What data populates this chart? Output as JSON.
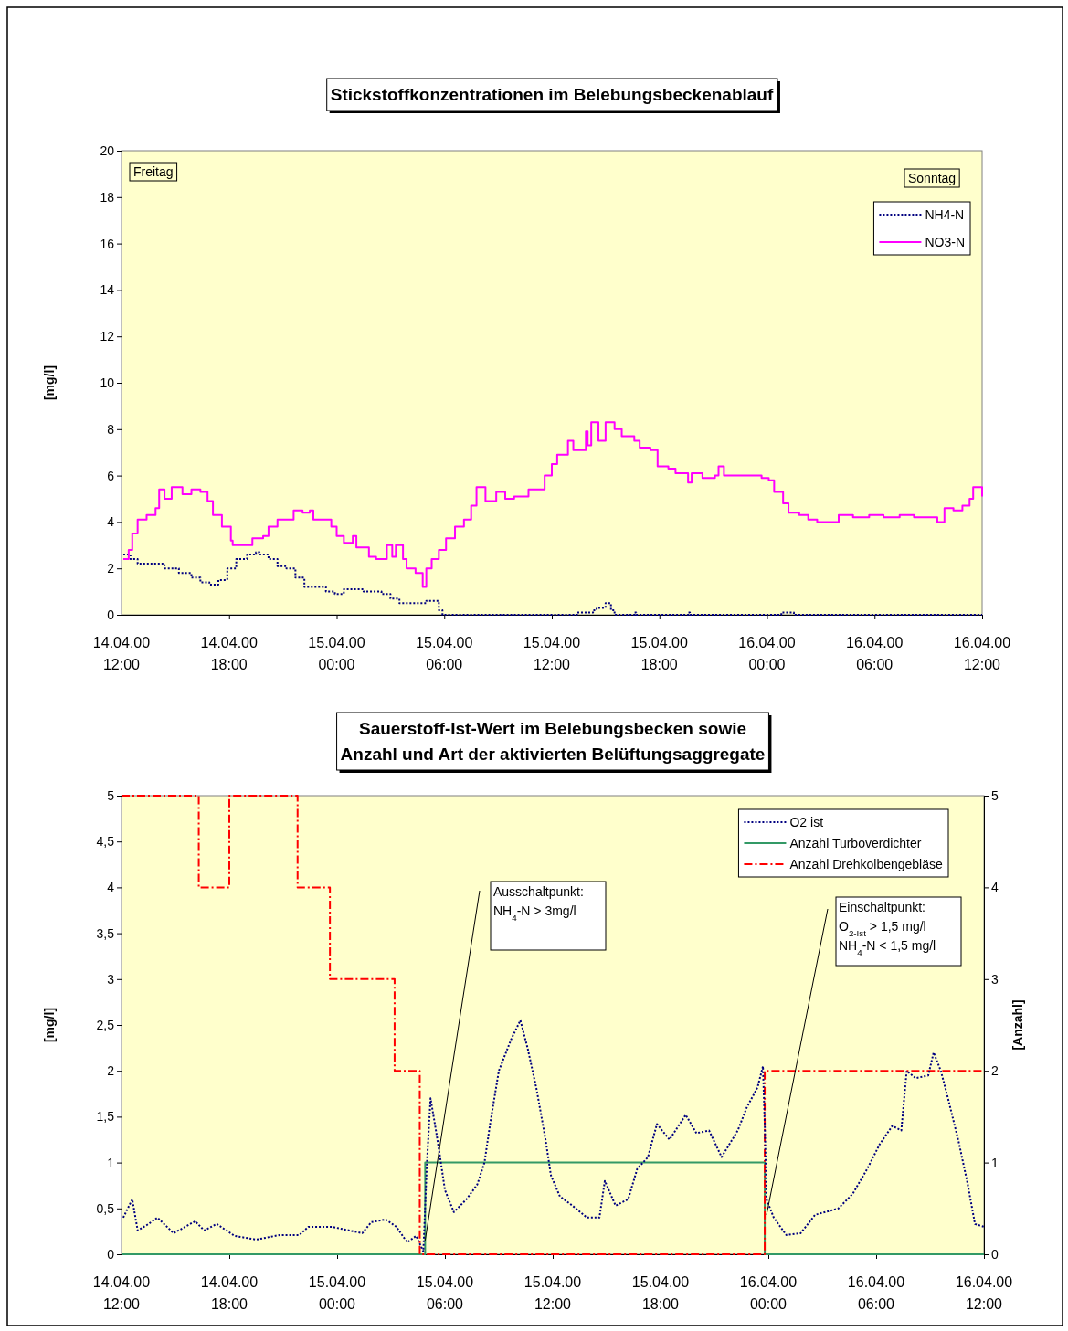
{
  "chart_data": [
    {
      "type": "line",
      "title": "Stickstoffkonzentrationen im Belebungsbeckenablauf",
      "ylabel": "[mg/l]",
      "xlim": [
        "2000-04-14T12:00",
        "2000-04-16T12:00"
      ],
      "xticks": [
        {
          "value": "2000-04-14T12:00",
          "label": "14.04.00\n12:00"
        },
        {
          "value": "2000-04-14T18:00",
          "label": "14.04.00\n18:00"
        },
        {
          "value": "2000-04-15T00:00",
          "label": "15.04.00\n00:00"
        },
        {
          "value": "2000-04-15T06:00",
          "label": "15.04.00\n06:00"
        },
        {
          "value": "2000-04-15T12:00",
          "label": "15.04.00\n12:00"
        },
        {
          "value": "2000-04-15T18:00",
          "label": "15.04.00\n18:00"
        },
        {
          "value": "2000-04-16T00:00",
          "label": "16.04.00\n00:00"
        },
        {
          "value": "2000-04-16T06:00",
          "label": "16.04.00\n06:00"
        },
        {
          "value": "2000-04-16T12:00",
          "label": "16.04.00\n12:00"
        }
      ],
      "ylim": [
        0,
        20
      ],
      "yticks": [
        0,
        2,
        4,
        6,
        8,
        10,
        12,
        14,
        16,
        18,
        20
      ],
      "legend": "top right",
      "marker": "none",
      "annotations": [
        "Freitag",
        "Sonntag"
      ],
      "series": [
        {
          "name": "NH4-N",
          "type": "step",
          "color": "#000080",
          "line_style": "dotted",
          "x": [
            "2000-04-14T12:06",
            "2000-04-14T12:30",
            "2000-04-14T12:54",
            "2000-04-14T14:24",
            "2000-04-14T15:12",
            "2000-04-14T15:54",
            "2000-04-14T16:24",
            "2000-04-14T16:54",
            "2000-04-14T17:24",
            "2000-04-14T17:54",
            "2000-04-14T18:24",
            "2000-04-14T19:00",
            "2000-04-14T19:30",
            "2000-04-14T19:42",
            "2000-04-14T20:12",
            "2000-04-14T20:42",
            "2000-04-14T21:12",
            "2000-04-14T21:42",
            "2000-04-14T22:12",
            "2000-04-14T22:42",
            "2000-04-14T23:24",
            "2000-04-14T23:54",
            "2000-04-15T00:24",
            "2000-04-15T01:30",
            "2000-04-15T02:30",
            "2000-04-15T03:00",
            "2000-04-15T03:30",
            "2000-04-15T04:12",
            "2000-04-15T04:48",
            "2000-04-15T05:00",
            "2000-04-15T05:36",
            "2000-04-15T05:42",
            "2000-04-15T05:54",
            "2000-04-15T13:18",
            "2000-04-15T13:24",
            "2000-04-15T14:18",
            "2000-04-15T14:30",
            "2000-04-15T15:00",
            "2000-04-15T15:18",
            "2000-04-15T15:30",
            "2000-04-15T16:36",
            "2000-04-15T16:42",
            "2000-04-15T19:36",
            "2000-04-15T19:42",
            "2000-04-16T00:48",
            "2000-04-16T01:30",
            "2000-04-16T12:00"
          ],
          "values": [
            2.6,
            2.4,
            2.2,
            2.0,
            1.8,
            1.6,
            1.4,
            1.3,
            1.5,
            2.0,
            2.4,
            2.6,
            2.7,
            2.6,
            2.4,
            2.1,
            2.0,
            1.6,
            1.2,
            1.2,
            1.0,
            0.9,
            1.1,
            1.0,
            0.9,
            0.7,
            0.5,
            0.5,
            0.5,
            0.6,
            0.6,
            0.2,
            0,
            0,
            0.1,
            0.2,
            0.3,
            0.5,
            0.2,
            0,
            0.1,
            0,
            0.1,
            0,
            0.1,
            0,
            0
          ]
        },
        {
          "name": "NO3-N",
          "type": "step",
          "color": "#ff00ff",
          "line_style": "solid",
          "x": [
            "2000-04-14T12:06",
            "2000-04-14T12:24",
            "2000-04-14T12:36",
            "2000-04-14T12:54",
            "2000-04-14T13:24",
            "2000-04-14T13:54",
            "2000-04-14T14:06",
            "2000-04-14T14:24",
            "2000-04-14T14:48",
            "2000-04-14T15:24",
            "2000-04-14T15:54",
            "2000-04-14T16:24",
            "2000-04-14T16:48",
            "2000-04-14T17:06",
            "2000-04-14T17:36",
            "2000-04-14T18:06",
            "2000-04-14T18:12",
            "2000-04-14T18:48",
            "2000-04-14T19:18",
            "2000-04-14T19:54",
            "2000-04-14T20:12",
            "2000-04-14T20:42",
            "2000-04-14T21:06",
            "2000-04-14T21:36",
            "2000-04-14T22:06",
            "2000-04-14T22:30",
            "2000-04-14T22:42",
            "2000-04-14T23:24",
            "2000-04-14T23:42",
            "2000-04-15T00:00",
            "2000-04-15T00:24",
            "2000-04-15T00:54",
            "2000-04-15T01:06",
            "2000-04-15T01:48",
            "2000-04-15T02:12",
            "2000-04-15T02:48",
            "2000-04-15T03:06",
            "2000-04-15T03:18",
            "2000-04-15T03:42",
            "2000-04-15T03:54",
            "2000-04-15T04:24",
            "2000-04-15T04:48",
            "2000-04-15T04:54",
            "2000-04-15T05:00",
            "2000-04-15T05:18",
            "2000-04-15T05:42",
            "2000-04-15T06:06",
            "2000-04-15T06:36",
            "2000-04-15T07:06",
            "2000-04-15T07:30",
            "2000-04-15T07:48",
            "2000-04-15T08:18",
            "2000-04-15T08:54",
            "2000-04-15T09:24",
            "2000-04-15T09:54",
            "2000-04-15T10:42",
            "2000-04-15T11:18",
            "2000-04-15T11:36",
            "2000-04-15T12:00",
            "2000-04-15T12:18",
            "2000-04-15T12:54",
            "2000-04-15T13:12",
            "2000-04-15T13:54",
            "2000-04-15T14:00",
            "2000-04-15T14:12",
            "2000-04-15T14:36",
            "2000-04-15T15:00",
            "2000-04-15T15:30",
            "2000-04-15T15:54",
            "2000-04-15T16:36",
            "2000-04-15T16:54",
            "2000-04-15T17:30",
            "2000-04-15T17:54",
            "2000-04-15T18:30",
            "2000-04-15T18:54",
            "2000-04-15T19:36",
            "2000-04-15T19:48",
            "2000-04-15T20:24",
            "2000-04-15T21:06",
            "2000-04-15T21:18",
            "2000-04-15T21:36",
            "2000-04-15T22:42",
            "2000-04-15T23:42",
            "2000-04-16T00:06",
            "2000-04-16T00:24",
            "2000-04-16T00:54",
            "2000-04-16T01:12",
            "2000-04-16T01:48",
            "2000-04-16T02:18",
            "2000-04-16T02:48",
            "2000-04-16T03:30",
            "2000-04-16T04:00",
            "2000-04-16T04:48",
            "2000-04-16T05:42",
            "2000-04-16T06:30",
            "2000-04-16T07:24",
            "2000-04-16T08:12",
            "2000-04-16T09:06",
            "2000-04-16T09:30",
            "2000-04-16T09:54",
            "2000-04-16T10:24",
            "2000-04-16T10:54",
            "2000-04-16T11:18",
            "2000-04-16T11:30",
            "2000-04-16T12:00"
          ],
          "values": [
            2.4,
            2.8,
            3.5,
            4.1,
            4.3,
            4.6,
            5.4,
            5.0,
            5.5,
            5.2,
            5.4,
            5.3,
            4.9,
            4.3,
            3.8,
            3.2,
            3.0,
            3.0,
            3.3,
            3.4,
            3.8,
            4.1,
            4.1,
            4.5,
            4.4,
            4.5,
            4.1,
            4.1,
            3.8,
            3.4,
            3.1,
            3.4,
            2.9,
            2.5,
            2.4,
            3.0,
            2.5,
            3.0,
            2.4,
            2.0,
            1.8,
            1.2,
            1.2,
            2.0,
            2.4,
            2.8,
            3.3,
            3.8,
            4.1,
            4.7,
            5.5,
            4.9,
            5.3,
            5.0,
            5.1,
            5.4,
            5.4,
            6.0,
            6.5,
            6.9,
            7.5,
            7.1,
            7.9,
            7.3,
            8.3,
            7.5,
            8.3,
            8.0,
            7.7,
            7.5,
            7.2,
            7.1,
            6.4,
            6.3,
            6.1,
            5.7,
            6.1,
            5.9,
            6.0,
            6.4,
            6.0,
            6.0,
            5.9,
            5.8,
            5.3,
            4.8,
            4.4,
            4.3,
            4.1,
            4.0,
            4.0,
            4.3,
            4.2,
            4.3,
            4.2,
            4.3,
            4.2,
            4.2,
            4.0,
            4.6,
            4.5,
            4.7,
            5.0,
            5.5,
            5.1
          ]
        }
      ]
    },
    {
      "type": "line",
      "title": "Sauerstoff-Ist-Wert im Belebungsbecken sowie\nAnzahl und Art der aktivierten Belüftungsaggregate",
      "ylabel": "[mg/l]",
      "y2label": "[Anzahl]",
      "xlim": [
        "2000-04-14T12:00",
        "2000-04-16T12:00"
      ],
      "xticks": [
        {
          "value": "2000-04-14T12:00",
          "label": "14.04.00\n12:00"
        },
        {
          "value": "2000-04-14T18:00",
          "label": "14.04.00\n18:00"
        },
        {
          "value": "2000-04-15T00:00",
          "label": "15.04.00\n00:00"
        },
        {
          "value": "2000-04-15T06:00",
          "label": "15.04.00\n06:00"
        },
        {
          "value": "2000-04-15T12:00",
          "label": "15.04.00\n12:00"
        },
        {
          "value": "2000-04-15T18:00",
          "label": "15.04.00\n18:00"
        },
        {
          "value": "2000-04-16T00:00",
          "label": "16.04.00\n00:00"
        },
        {
          "value": "2000-04-16T06:00",
          "label": "16.04.00\n06:00"
        },
        {
          "value": "2000-04-16T12:00",
          "label": "16.04.00\n12:00"
        }
      ],
      "ylim": [
        0,
        5
      ],
      "yticks": [
        0,
        {
          "value": 0.5,
          "label": "0,5"
        },
        1,
        {
          "value": 1.5,
          "label": "1,5"
        },
        2,
        {
          "value": 2.5,
          "label": "2,5"
        },
        3,
        {
          "value": 3.5,
          "label": "3,5"
        },
        4,
        {
          "value": 4.5,
          "label": "4,5"
        },
        5
      ],
      "y2lim": [
        0,
        5
      ],
      "y2ticks": [
        0,
        1,
        2,
        3,
        4,
        5
      ],
      "legend": "top right",
      "marker": "none",
      "annotations": [
        {
          "text": "Ausschaltpunkt:\nNH$_{4}$-N > 3mg/l",
          "x": "2000-04-15T04:54",
          "y": 0.15
        },
        {
          "text": "Einschaltpunkt:\nO$_{2-Ist}$ > 1,5 mg/l\nNH$_{4}$-N < 1,5 mg/l",
          "x": "2000-04-15T23:54",
          "y": 0.43
        }
      ],
      "series": [
        {
          "name": "O2 ist",
          "type": "line",
          "color": "#000080",
          "line_style": "dotted",
          "x": [
            "2000-04-14T12:06",
            "2000-04-14T12:36",
            "2000-04-14T12:54",
            "2000-04-14T13:30",
            "2000-04-14T14:00",
            "2000-04-14T14:54",
            "2000-04-14T16:06",
            "2000-04-14T16:36",
            "2000-04-14T17:18",
            "2000-04-14T18:18",
            "2000-04-14T19:30",
            "2000-04-14T20:48",
            "2000-04-14T21:54",
            "2000-04-14T22:24",
            "2000-04-14T23:42",
            "2000-04-15T01:24",
            "2000-04-15T01:54",
            "2000-04-15T02:42",
            "2000-04-15T03:18",
            "2000-04-15T03:54",
            "2000-04-15T04:24",
            "2000-04-15T04:48",
            "2000-04-15T05:00",
            "2000-04-15T05:12",
            "2000-04-15T05:30",
            "2000-04-15T05:42",
            "2000-04-15T06:00",
            "2000-04-15T06:30",
            "2000-04-15T07:12",
            "2000-04-15T07:48",
            "2000-04-15T08:12",
            "2000-04-15T08:30",
            "2000-04-15T09:00",
            "2000-04-15T09:42",
            "2000-04-15T10:12",
            "2000-04-15T10:36",
            "2000-04-15T11:06",
            "2000-04-15T11:36",
            "2000-04-15T11:54",
            "2000-04-15T12:24",
            "2000-04-15T13:06",
            "2000-04-15T13:54",
            "2000-04-15T14:36",
            "2000-04-15T14:54",
            "2000-04-15T15:30",
            "2000-04-15T16:12",
            "2000-04-15T16:42",
            "2000-04-15T17:18",
            "2000-04-15T17:48",
            "2000-04-15T18:30",
            "2000-04-15T19:24",
            "2000-04-15T20:00",
            "2000-04-15T20:42",
            "2000-04-15T21:24",
            "2000-04-15T22:18",
            "2000-04-15T22:48",
            "2000-04-15T23:24",
            "2000-04-15T23:42",
            "2000-04-15T23:48",
            "2000-04-15T23:54",
            "2000-04-16T00:18",
            "2000-04-16T01:00",
            "2000-04-16T01:48",
            "2000-04-16T02:36",
            "2000-04-16T03:54",
            "2000-04-16T04:42",
            "2000-04-16T05:30",
            "2000-04-16T06:12",
            "2000-04-16T06:54",
            "2000-04-16T07:24",
            "2000-04-16T07:42",
            "2000-04-16T08:12",
            "2000-04-16T08:54",
            "2000-04-16T09:12",
            "2000-04-16T09:36",
            "2000-04-16T10:00",
            "2000-04-16T10:36",
            "2000-04-16T11:06",
            "2000-04-16T11:30",
            "2000-04-16T12:00"
          ],
          "values": [
            0.4,
            0.6,
            0.26,
            0.33,
            0.4,
            0.23,
            0.36,
            0.26,
            0.33,
            0.2,
            0.16,
            0.21,
            0.21,
            0.3,
            0.3,
            0.23,
            0.35,
            0.38,
            0.3,
            0.13,
            0.2,
            0.03,
            1.0,
            1.7,
            1.35,
            1.1,
            0.7,
            0.46,
            0.6,
            0.76,
            1.0,
            1.4,
            2.0,
            2.35,
            2.55,
            2.25,
            1.8,
            1.25,
            0.86,
            0.63,
            0.53,
            0.4,
            0.4,
            0.8,
            0.53,
            0.6,
            0.93,
            1.06,
            1.42,
            1.25,
            1.52,
            1.32,
            1.35,
            1.06,
            1.35,
            1.6,
            1.82,
            2.05,
            1.42,
            0.6,
            0.4,
            0.21,
            0.23,
            0.43,
            0.5,
            0.66,
            0.93,
            1.2,
            1.4,
            1.35,
            2.0,
            1.92,
            1.95,
            2.2,
            2.0,
            1.7,
            1.22,
            0.76,
            0.33,
            0.3
          ]
        },
        {
          "name": "Anzahl Turboverdichter",
          "type": "step",
          "axis": "y2",
          "color": "#339966",
          "line_style": "solid",
          "x": [
            "2000-04-14T12:00",
            "2000-04-15T04:54",
            "2000-04-15T23:48",
            "2000-04-16T12:00"
          ],
          "values": [
            0,
            1,
            0,
            0
          ]
        },
        {
          "name": "Anzahl Drehkolbengebläse",
          "type": "step",
          "axis": "y2",
          "color": "#ff0000",
          "line_style": "dashed",
          "x": [
            "2000-04-14T12:00",
            "2000-04-14T16:18",
            "2000-04-14T18:00",
            "2000-04-14T21:48",
            "2000-04-14T23:36",
            "2000-04-15T03:12",
            "2000-04-15T04:36",
            "2000-04-15T23:48",
            "2000-04-16T12:00"
          ],
          "values": [
            5,
            4,
            5,
            4,
            3,
            2,
            0,
            2,
            2
          ]
        }
      ]
    }
  ]
}
